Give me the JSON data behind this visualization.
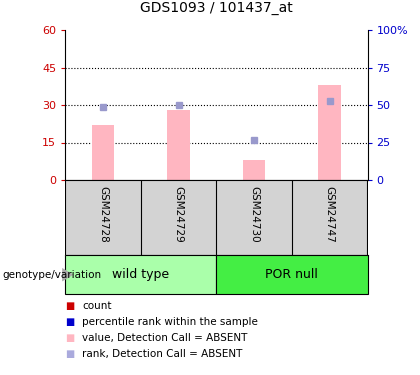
{
  "title": "GDS1093 / 101437_at",
  "samples": [
    "GSM24728",
    "GSM24729",
    "GSM24730",
    "GSM24747"
  ],
  "bar_values": [
    22,
    28,
    8,
    38
  ],
  "rank_values": [
    49,
    50,
    27,
    53
  ],
  "left_ylim": [
    0,
    60
  ],
  "right_ylim": [
    0,
    100
  ],
  "left_yticks": [
    0,
    15,
    30,
    45,
    60
  ],
  "right_yticks": [
    0,
    25,
    50,
    75,
    100
  ],
  "right_yticklabels": [
    "0",
    "25",
    "50",
    "75",
    "100%"
  ],
  "left_color": "#cc0000",
  "right_color": "#0000cc",
  "bar_color": "#ffb6c1",
  "rank_color": "#9999cc",
  "sample_bg": "#d3d3d3",
  "group_spans": [
    {
      "name": "wild type",
      "start": 0,
      "end": 2,
      "color": "#aaffaa"
    },
    {
      "name": "POR null",
      "start": 2,
      "end": 4,
      "color": "#44ee44"
    }
  ],
  "genotype_label": "genotype/variation",
  "legend_items": [
    {
      "label": "count",
      "color": "#cc0000"
    },
    {
      "label": "percentile rank within the sample",
      "color": "#0000cc"
    },
    {
      "label": "value, Detection Call = ABSENT",
      "color": "#ffb6c1"
    },
    {
      "label": "rank, Detection Call = ABSENT",
      "color": "#aaaadd"
    }
  ]
}
